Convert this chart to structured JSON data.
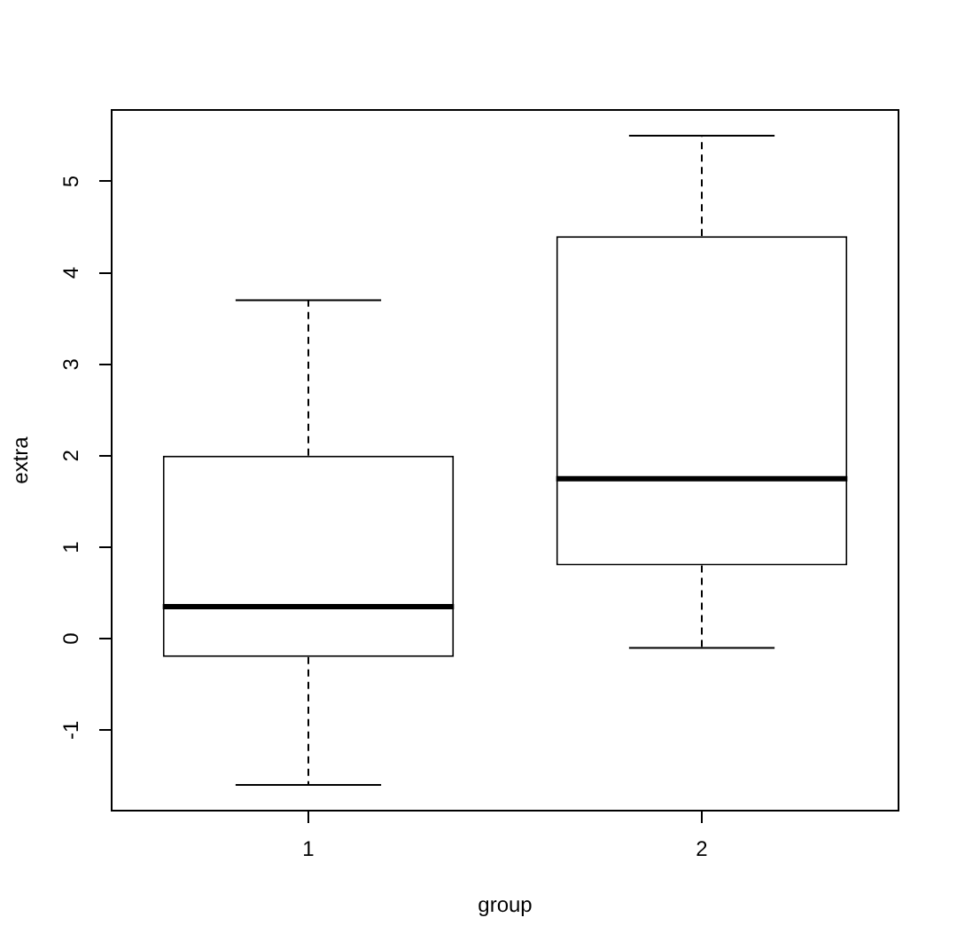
{
  "chart_data": {
    "type": "box",
    "xlabel": "group",
    "ylabel": "extra",
    "categories": [
      "1",
      "2"
    ],
    "color": "#000000",
    "boxes": [
      {
        "low": -1.6,
        "q1": -0.2,
        "median": 0.35,
        "q3": 2.0,
        "high": 3.7
      },
      {
        "low": -0.1,
        "q1": 0.8,
        "median": 1.75,
        "q3": 4.4,
        "high": 5.5
      }
    ],
    "ylim": [
      -1.88,
      5.78
    ],
    "yticks": [
      -1,
      0,
      1,
      2,
      3,
      4,
      5
    ],
    "grid": false
  }
}
